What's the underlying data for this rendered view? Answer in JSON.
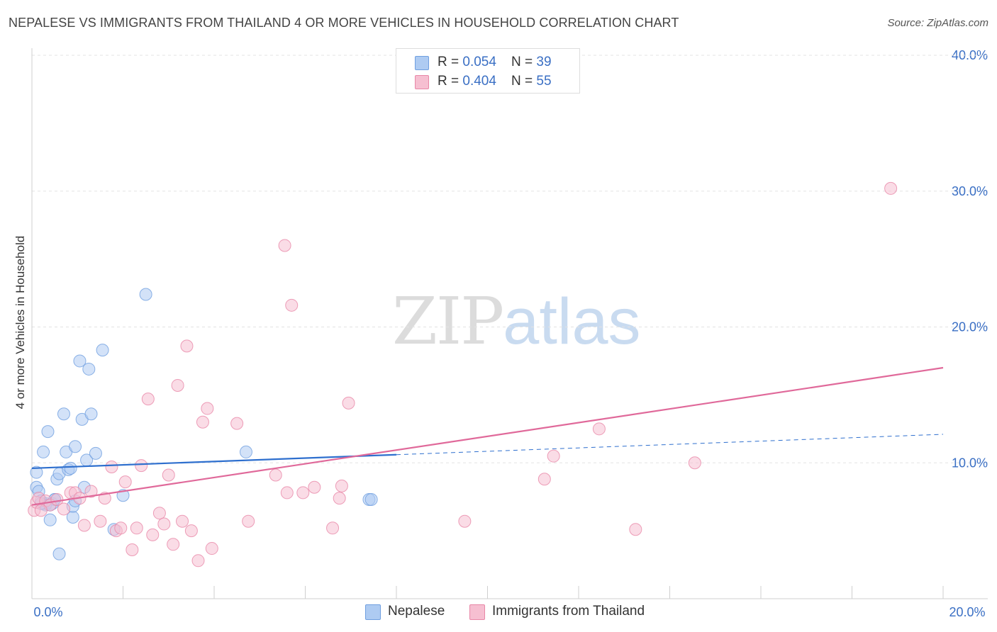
{
  "title": "NEPALESE VS IMMIGRANTS FROM THAILAND 4 OR MORE VEHICLES IN HOUSEHOLD CORRELATION CHART",
  "source": "Source: ZipAtlas.com",
  "watermark": {
    "zip": "ZIP",
    "atlas": "atlas"
  },
  "colors": {
    "blue": "#6f9fe0",
    "blue_fill": "#aecbf2",
    "pink": "#e887a7",
    "pink_fill": "#f6bfd1",
    "blue_line": "#2e6fce",
    "pink_line": "#e0699a",
    "tick_text": "#3a6fc4",
    "grid": "#e3e3e3"
  },
  "legend": [
    {
      "r_label": "R = ",
      "r_value": "0.054",
      "n_label": "N = ",
      "n_value": "39",
      "color": "#aecbf2",
      "border": "#6f9fe0"
    },
    {
      "r_label": "R = ",
      "r_value": "0.404",
      "n_label": "N = ",
      "n_value": "55",
      "color": "#f6bfd1",
      "border": "#e887a7"
    }
  ],
  "bottom_legend": [
    {
      "label": "Nepalese",
      "color": "#aecbf2",
      "border": "#6f9fe0"
    },
    {
      "label": "Immigrants from Thailand",
      "color": "#f6bfd1",
      "border": "#e887a7"
    }
  ],
  "chart_data": {
    "type": "scatter",
    "title": "NEPALESE VS IMMIGRANTS FROM THAILAND 4 OR MORE VEHICLES IN HOUSEHOLD CORRELATION CHART",
    "xlabel": "",
    "ylabel": "4 or more Vehicles in Household",
    "xlim": [
      0,
      20
    ],
    "ylim": [
      0,
      40
    ],
    "x_tick_labels": [
      "0.0%",
      "20.0%"
    ],
    "y_ticks": [
      10,
      20,
      30,
      40
    ],
    "y_tick_labels": [
      "10.0%",
      "20.0%",
      "30.0%",
      "40.0%"
    ],
    "grid": true,
    "legend_position": "top-center",
    "series": [
      {
        "name": "Nepalese",
        "r": 0.054,
        "n": 39,
        "trend": {
          "x0": 0,
          "y0": 9.6,
          "x1": 8,
          "y1": 10.6,
          "dashed_to_x": 20,
          "dashed_to_y": 12.1
        },
        "points": [
          [
            0.1,
            9.3
          ],
          [
            0.1,
            8.2
          ],
          [
            0.15,
            7.9
          ],
          [
            0.2,
            7.2
          ],
          [
            0.25,
            10.8
          ],
          [
            0.3,
            7.0
          ],
          [
            0.35,
            12.3
          ],
          [
            0.4,
            5.8
          ],
          [
            0.45,
            7.0
          ],
          [
            0.5,
            7.3
          ],
          [
            0.55,
            8.8
          ],
          [
            0.6,
            9.2
          ],
          [
            0.6,
            3.3
          ],
          [
            0.7,
            13.6
          ],
          [
            0.75,
            10.8
          ],
          [
            0.8,
            9.5
          ],
          [
            0.85,
            9.6
          ],
          [
            0.9,
            6.0
          ],
          [
            0.9,
            6.8
          ],
          [
            0.95,
            11.2
          ],
          [
            1.05,
            17.5
          ],
          [
            1.1,
            13.2
          ],
          [
            1.15,
            8.2
          ],
          [
            1.2,
            10.2
          ],
          [
            1.25,
            16.9
          ],
          [
            1.3,
            13.6
          ],
          [
            1.4,
            10.7
          ],
          [
            1.55,
            18.3
          ],
          [
            1.8,
            5.1
          ],
          [
            2.0,
            7.6
          ],
          [
            2.5,
            22.4
          ],
          [
            4.7,
            10.8
          ],
          [
            7.4,
            7.3
          ],
          [
            7.45,
            7.3
          ],
          [
            0.3,
            6.9
          ],
          [
            0.5,
            7.3
          ],
          [
            0.2,
            7.0
          ],
          [
            0.4,
            6.9
          ],
          [
            0.95,
            7.2
          ]
        ]
      },
      {
        "name": "Immigrants from Thailand",
        "r": 0.404,
        "n": 55,
        "trend": {
          "x0": 0,
          "y0": 6.9,
          "x1": 20,
          "y1": 17.0
        },
        "points": [
          [
            0.05,
            6.5
          ],
          [
            0.1,
            7.1
          ],
          [
            0.15,
            7.4
          ],
          [
            0.3,
            7.2
          ],
          [
            0.4,
            6.9
          ],
          [
            0.55,
            7.3
          ],
          [
            0.7,
            6.6
          ],
          [
            0.85,
            7.8
          ],
          [
            0.95,
            7.8
          ],
          [
            1.05,
            7.4
          ],
          [
            1.15,
            5.4
          ],
          [
            1.3,
            7.9
          ],
          [
            1.5,
            5.7
          ],
          [
            1.6,
            7.4
          ],
          [
            1.75,
            9.7
          ],
          [
            1.85,
            5.0
          ],
          [
            1.95,
            5.2
          ],
          [
            2.05,
            8.6
          ],
          [
            2.2,
            3.6
          ],
          [
            2.3,
            5.2
          ],
          [
            2.4,
            9.8
          ],
          [
            2.55,
            14.7
          ],
          [
            2.65,
            4.7
          ],
          [
            2.8,
            6.3
          ],
          [
            2.9,
            5.5
          ],
          [
            3.0,
            9.1
          ],
          [
            3.1,
            4.0
          ],
          [
            3.2,
            15.7
          ],
          [
            3.3,
            5.7
          ],
          [
            3.4,
            18.6
          ],
          [
            3.5,
            5.0
          ],
          [
            3.65,
            2.8
          ],
          [
            3.75,
            13.0
          ],
          [
            3.85,
            14.0
          ],
          [
            3.95,
            3.7
          ],
          [
            4.5,
            12.9
          ],
          [
            4.75,
            5.7
          ],
          [
            5.35,
            9.1
          ],
          [
            5.55,
            26.0
          ],
          [
            5.6,
            7.8
          ],
          [
            5.7,
            21.6
          ],
          [
            5.95,
            7.8
          ],
          [
            6.2,
            8.2
          ],
          [
            6.6,
            5.2
          ],
          [
            6.75,
            7.4
          ],
          [
            6.8,
            8.3
          ],
          [
            6.95,
            14.4
          ],
          [
            9.5,
            5.7
          ],
          [
            11.45,
            10.5
          ],
          [
            11.25,
            8.8
          ],
          [
            12.45,
            12.5
          ],
          [
            13.25,
            5.1
          ],
          [
            14.55,
            10.0
          ],
          [
            18.85,
            30.2
          ],
          [
            0.2,
            6.5
          ]
        ]
      }
    ]
  }
}
